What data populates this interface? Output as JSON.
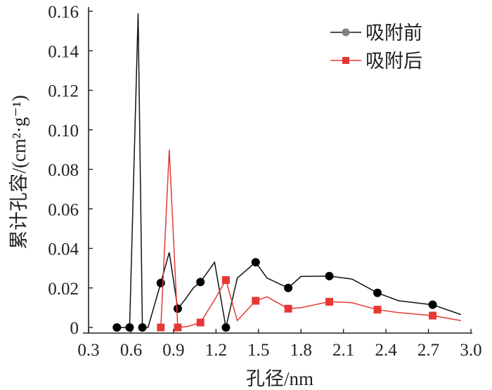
{
  "chart_data": {
    "type": "line",
    "title": "",
    "xlabel": "孔径/nm",
    "ylabel": "累计孔容/(cm²·g⁻¹)",
    "xlim": [
      0.3,
      3.0
    ],
    "ylim": [
      0,
      0.16
    ],
    "xticks": [
      "0.3",
      "0.6",
      "0.9",
      "1.2",
      "1.5",
      "1.8",
      "2.1",
      "2.4",
      "2.7",
      "3.0"
    ],
    "yticks": [
      "0",
      "0.02",
      "0.04",
      "0.06",
      "0.08",
      "0.10",
      "0.12",
      "0.14",
      "0.16"
    ],
    "grid": false,
    "legend_position": "top-right",
    "series": [
      {
        "name": "吸附前",
        "color": "#111111",
        "marker": "circle",
        "legend_marker_color": "#808080",
        "x": [
          0.5,
          0.59,
          0.65,
          0.68,
          0.72,
          0.81,
          0.87,
          0.93,
          0.97,
          1.04,
          1.09,
          1.15,
          1.19,
          1.27,
          1.35,
          1.48,
          1.56,
          1.71,
          1.8,
          2.0,
          2.16,
          2.34,
          2.49,
          2.73,
          2.93
        ],
        "y": [
          0,
          0,
          0.159,
          0,
          0,
          0.0225,
          0.038,
          0.0095,
          0.013,
          0.02,
          0.023,
          0.029,
          0.033,
          0,
          0.025,
          0.033,
          0.025,
          0.02,
          0.0258,
          0.026,
          0.0245,
          0.0175,
          0.0135,
          0.0115,
          0.0065
        ],
        "marker_x": [
          0.5,
          0.59,
          0.68,
          0.81,
          0.93,
          1.09,
          1.27,
          1.48,
          1.71,
          2.0,
          2.34,
          2.73
        ],
        "marker_y": [
          0,
          0,
          0,
          0.0225,
          0.0095,
          0.023,
          0,
          0.033,
          0.02,
          0.026,
          0.0175,
          0.0115
        ]
      },
      {
        "name": "吸附后",
        "color": "#e53935",
        "marker": "square",
        "legend_marker_color": "#e53935",
        "x": [
          0.81,
          0.87,
          0.93,
          1.0,
          1.09,
          1.19,
          1.27,
          1.35,
          1.48,
          1.56,
          1.71,
          1.8,
          2.0,
          2.16,
          2.34,
          2.49,
          2.73,
          2.93
        ],
        "y": [
          0,
          0.09,
          0,
          0.0005,
          0.0025,
          0.014,
          0.024,
          0.0035,
          0.0135,
          0.0155,
          0.0095,
          0.01,
          0.013,
          0.0125,
          0.009,
          0.0075,
          0.006,
          0.0035
        ],
        "marker_x": [
          0.81,
          0.93,
          1.09,
          1.27,
          1.48,
          1.71,
          2.0,
          2.34,
          2.73
        ],
        "marker_y": [
          0,
          0,
          0.0025,
          0.024,
          0.0135,
          0.0095,
          0.013,
          0.009,
          0.006
        ]
      }
    ]
  }
}
